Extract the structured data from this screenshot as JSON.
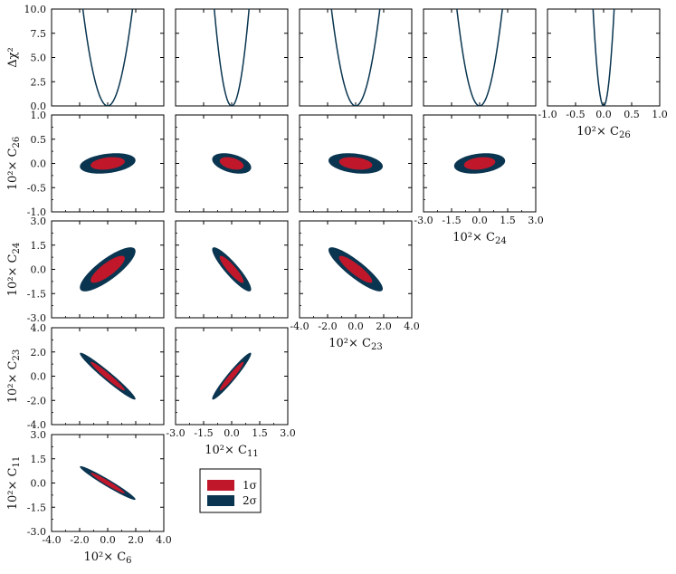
{
  "chart_data": {
    "type": "corner-plot",
    "colors": {
      "sigma1": "#c0182a",
      "sigma2": "#0a3550",
      "curve": "#0a3550",
      "frame": "#000000"
    },
    "legend": {
      "placement": "lower-middle",
      "entries": [
        "1σ",
        "2σ"
      ]
    },
    "chi2_label": "Δχ²",
    "chi2_ticks": [
      "0.0",
      "2.5",
      "5.0",
      "7.5",
      "10.0"
    ],
    "chi2_ylim": [
      0,
      10
    ],
    "parameters": [
      {
        "key": "C6",
        "label_prefix": "10²× C",
        "label_sub": "6",
        "range": [
          -4,
          4
        ],
        "ticks": [
          "-4.0",
          "-2.0",
          "0.0",
          "2.0",
          "4.0"
        ],
        "sigma": 0.8
      },
      {
        "key": "C11",
        "label_prefix": "10²× C",
        "label_sub": "11",
        "range": [
          -3,
          3
        ],
        "ticks": [
          "-3.0",
          "-1.5",
          "0.0",
          "1.5",
          "3.0"
        ],
        "sigma": 0.42
      },
      {
        "key": "C23",
        "label_prefix": "10²× C",
        "label_sub": "23",
        "range": [
          -4,
          4
        ],
        "ticks": [
          "-4.0",
          "-2.0",
          "0.0",
          "2.0",
          "4.0"
        ],
        "sigma": 0.78
      },
      {
        "key": "C24",
        "label_prefix": "10²× C",
        "label_sub": "24",
        "range": [
          -3,
          3
        ],
        "ticks": [
          "-3.0",
          "-1.5",
          "0.0",
          "1.5",
          "3.0"
        ],
        "sigma": 0.55
      },
      {
        "key": "C26",
        "label_prefix": "10²× C",
        "label_sub": "26",
        "range": [
          -1,
          1
        ],
        "ticks": [
          "-1.0",
          "-0.5",
          "0.0",
          "0.5",
          "1.0"
        ],
        "sigma": 0.085
      }
    ],
    "correlations": {
      "C26|C6": 0.3,
      "C26|C11": -0.4,
      "C26|C23": -0.28,
      "C26|C24": 0.25,
      "C24|C6": 0.82,
      "C24|C11": -0.9,
      "C24|C23": -0.88,
      "C23|C6": -0.97,
      "C23|C11": 0.96,
      "C11|C6": -0.97
    }
  }
}
